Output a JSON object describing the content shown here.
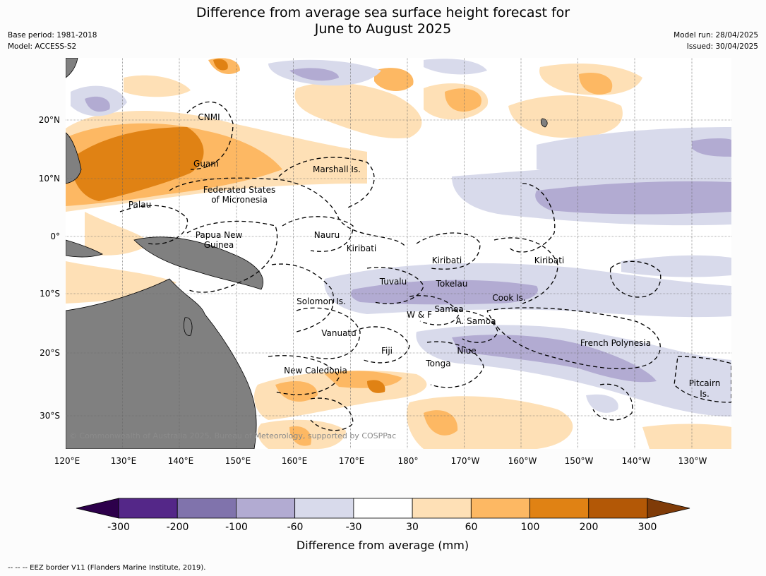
{
  "title_line1": "Difference from average sea surface height forecast for",
  "title_line2": "June to August 2025",
  "meta_left": [
    "Base period: 1981-2018",
    "Model: ACCESS-S2"
  ],
  "meta_right": [
    "Model run: 28/04/2025",
    "Issued: 30/04/2025"
  ],
  "lat_ticks": [
    "20°N",
    "10°N",
    "0°",
    "10°S",
    "20°S",
    "30°S"
  ],
  "lon_ticks": [
    "120°E",
    "130°E",
    "140°E",
    "150°E",
    "160°E",
    "170°E",
    "180°",
    "170°W",
    "160°W",
    "150°W",
    "140°W",
    "130°W"
  ],
  "places": [
    "CNMI",
    "Guam",
    "Marshall Is.",
    "Federated States",
    "of Micronesia",
    "Palau",
    "Papua New",
    "Guinea",
    "Nauru",
    "Kiribati",
    "Kiribati",
    "Kiribati",
    "Tuvalu",
    "Tokelau",
    "Cook Is.",
    "Solomon Is.",
    "W & F",
    "Samoa",
    "A. Samoa",
    "Vanuatu",
    "Fiji",
    "Niue",
    "French Polynesia",
    "Tonga",
    "New Caledonia",
    "Pitcairn",
    "Is."
  ],
  "copyright": "© Commonwealth of Australia 2025, Bureau of Meteorology, supported by COSPPac",
  "colorbar": {
    "levels": [
      "-300",
      "-200",
      "-100",
      "-60",
      "-30",
      "30",
      "60",
      "100",
      "200",
      "300"
    ],
    "colors": [
      "#2d004b",
      "#542788",
      "#8073ac",
      "#b2abd2",
      "#d8daeb",
      "#ffffff",
      "#fee0b6",
      "#fdb863",
      "#e08214",
      "#b35806",
      "#7f3b08"
    ],
    "title": "Difference from average (mm)"
  },
  "footnote": "--  --  -- EEZ border V11 (Flanders Marine Institute, 2019)."
}
